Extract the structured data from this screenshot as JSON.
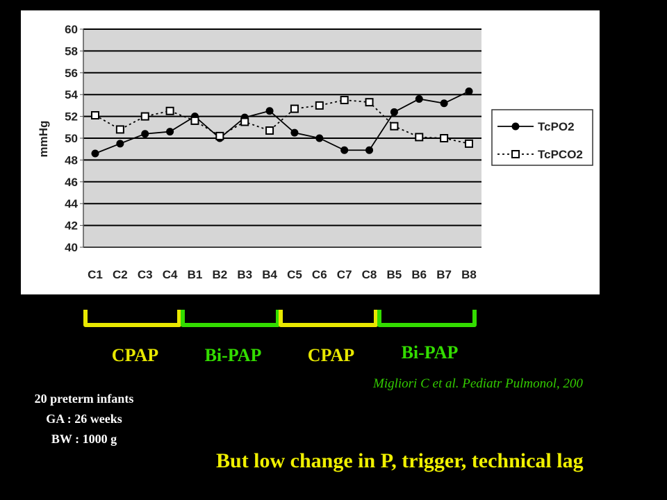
{
  "chart_data": {
    "type": "line",
    "y_label": "mmHg",
    "categories": [
      "C1",
      "C2",
      "C3",
      "C4",
      "B1",
      "B2",
      "B3",
      "B4",
      "C5",
      "C6",
      "C7",
      "C8",
      "B5",
      "B6",
      "B7",
      "B8"
    ],
    "series": [
      {
        "name": "TcPO2",
        "color": "#000000",
        "marker": "circle",
        "dash": false,
        "values": [
          48.6,
          49.5,
          50.4,
          50.6,
          52.0,
          50.0,
          51.9,
          52.5,
          50.5,
          50.0,
          48.9,
          48.9,
          52.4,
          53.6,
          53.2,
          54.3
        ]
      },
      {
        "name": "TcPCO2",
        "color": "#000000",
        "marker": "square",
        "dash": true,
        "values": [
          52.1,
          50.8,
          52.0,
          52.5,
          51.6,
          50.2,
          51.5,
          50.7,
          52.7,
          53.0,
          53.5,
          53.3,
          51.1,
          50.1,
          50.0,
          49.5
        ]
      }
    ],
    "ylim": [
      40,
      60
    ],
    "yticks": [
      40,
      42,
      44,
      46,
      48,
      50,
      52,
      54,
      56,
      58,
      60
    ],
    "grid": true
  },
  "slide": {
    "phases": [
      {
        "label": "CPAP",
        "color": "#e8e800"
      },
      {
        "label": "Bi-PAP",
        "color": "#33dd00"
      },
      {
        "label": "CPAP",
        "color": "#e8e800"
      },
      {
        "label": "Bi-PAP",
        "color": "#33dd00"
      }
    ],
    "citation": "Migliori C et al. Pediatr Pulmonol, 200",
    "study": [
      "20 preterm infants",
      "GA : 26 weeks",
      "BW : 1000 g"
    ],
    "conclusion": "But low change in P, trigger, technical lag"
  }
}
